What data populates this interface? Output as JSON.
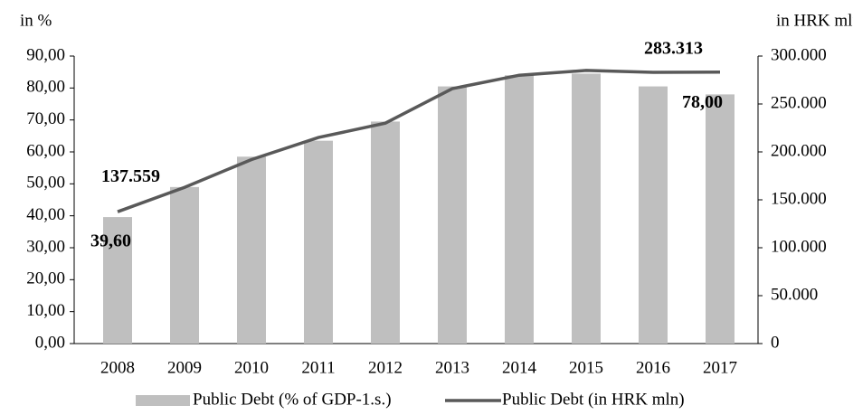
{
  "chart_data": {
    "type": "bar-line",
    "y_label": "in %",
    "y2_label": "in HRK mln",
    "categories": [
      "2008",
      "2009",
      "2010",
      "2011",
      "2012",
      "2013",
      "2014",
      "2015",
      "2016",
      "2017"
    ],
    "series": [
      {
        "name": "Public Debt (% of GDP-1.s.)",
        "type": "bar",
        "color": "#bfbfbf",
        "values": [
          39.6,
          49,
          58.5,
          63.5,
          69.5,
          80.5,
          84,
          84.5,
          80.5,
          78
        ],
        "value_labels": [
          "39,60",
          null,
          null,
          null,
          null,
          null,
          null,
          null,
          null,
          "78,00"
        ]
      },
      {
        "name": "Public Debt (in HRK mln)",
        "type": "line",
        "axis": "y2",
        "color": "#595959",
        "values": [
          137559,
          163000,
          192000,
          215000,
          230000,
          266000,
          280000,
          285000,
          283000,
          283313
        ],
        "value_labels": [
          "137.559",
          null,
          null,
          null,
          null,
          null,
          null,
          null,
          null,
          "283.313"
        ]
      }
    ],
    "ylim": [
      0,
      90
    ],
    "yticks": [
      {
        "value": 0,
        "label": "0,00"
      },
      {
        "value": 10,
        "label": "10,00"
      },
      {
        "value": 20,
        "label": "20,00"
      },
      {
        "value": 30,
        "label": "30,00"
      },
      {
        "value": 40,
        "label": "40,00"
      },
      {
        "value": 50,
        "label": "50,00"
      },
      {
        "value": 60,
        "label": "60,00"
      },
      {
        "value": 70,
        "label": "70,00"
      },
      {
        "value": 80,
        "label": "80,00"
      },
      {
        "value": 90,
        "label": "90,00"
      }
    ],
    "y2lim": [
      0,
      300000
    ],
    "y2ticks": [
      0,
      {
        "value": 50000,
        "label": "50.000"
      },
      {
        "value": 100000,
        "label": "100.000"
      },
      {
        "value": 150000,
        "label": "150.000"
      },
      {
        "value": 200000,
        "label": "200.000"
      },
      {
        "value": 250000,
        "label": "250.000"
      },
      {
        "value": 300000,
        "label": "300.000"
      }
    ],
    "grid": false,
    "legend": "bottom"
  }
}
